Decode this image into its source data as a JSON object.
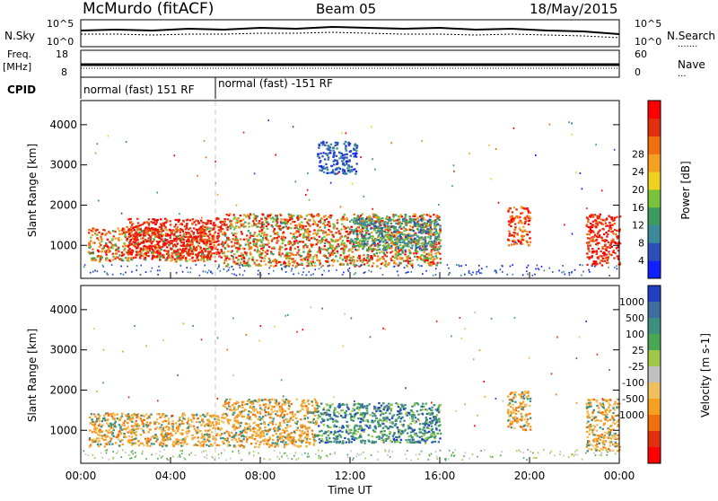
{
  "header": {
    "station": "McMurdo (fitACF)",
    "beam": "Beam 05",
    "date": "18/May/2015"
  },
  "top_panels": {
    "nsky_label": "N.Sky",
    "nsky_ticks": [
      "10^5",
      "10^0"
    ],
    "nsearch_label": "N.Search",
    "nsearch_ticks": [
      "10^5",
      "10^0"
    ],
    "freq_label": "Freq.",
    "freq_unit": "[MHz]",
    "freq_ticks": [
      "18",
      "8"
    ],
    "nave_label": "Nave",
    "nave_ticks": [
      "60",
      "0"
    ],
    "cpid_label": "CPID",
    "cpid_segments": [
      {
        "text": "normal (fast) 151 RF",
        "start_hour": 0,
        "end_hour": 6.0
      },
      {
        "text": "normal (fast) -151 RF",
        "start_hour": 6.0,
        "end_hour": 24
      }
    ]
  },
  "chart_data": [
    {
      "type": "heatmap",
      "name": "power",
      "ylabel": "Slant Range [km]",
      "yticks": [
        "1000",
        "2000",
        "3000",
        "4000"
      ],
      "ylim": [
        180,
        4600
      ],
      "xlim": [
        0,
        24
      ],
      "colorbar": {
        "label": "Power [dB]",
        "ticks": [
          "4",
          "8",
          "12",
          "16",
          "20",
          "24",
          "28"
        ],
        "colors": [
          "#1020ff",
          "#2a50b8",
          "#3a8a9a",
          "#3d9a60",
          "#78c23c",
          "#f0d020",
          "#f5a020",
          "#f07010",
          "#e03010",
          "#ff0000"
        ]
      },
      "echo_regions": [
        {
          "x": [
            0.3,
            6.0
          ],
          "y": [
            620,
            1450
          ],
          "color_hint": "mixed-high"
        },
        {
          "x": [
            2.0,
            6.3
          ],
          "y": [
            700,
            1700
          ],
          "color_hint": "red"
        },
        {
          "x": [
            6.3,
            16.0
          ],
          "y": [
            500,
            1800
          ],
          "color_hint": "red-green"
        },
        {
          "x": [
            12.0,
            16.0
          ],
          "y": [
            900,
            1700
          ],
          "color_hint": "blue-green"
        },
        {
          "x": [
            10.5,
            12.3
          ],
          "y": [
            2800,
            3600
          ],
          "color_hint": "blue"
        },
        {
          "x": [
            19.0,
            20.0
          ],
          "y": [
            1000,
            2000
          ],
          "color_hint": "orange"
        },
        {
          "x": [
            22.5,
            24.0
          ],
          "y": [
            500,
            1800
          ],
          "color_hint": "red"
        }
      ]
    },
    {
      "type": "heatmap",
      "name": "velocity",
      "ylabel": "Slant Range [km]",
      "yticks": [
        "1000",
        "2000",
        "3000",
        "4000"
      ],
      "ylim": [
        180,
        4600
      ],
      "xlim": [
        0,
        24
      ],
      "xlabel": "Time UT",
      "xticks": [
        "00:00",
        "04:00",
        "08:00",
        "12:00",
        "16:00",
        "20:00",
        "00:00"
      ],
      "colorbar": {
        "label": "Velocity [m s-1]",
        "ticks": [
          "1000",
          "500",
          "100",
          "25",
          "-25",
          "-100",
          "-500",
          "-1000"
        ],
        "colors": [
          "#2040c0",
          "#3c6ea0",
          "#3d9080",
          "#4aa852",
          "#9ec84a",
          "#c0c0c0",
          "#f0c060",
          "#f5a020",
          "#f07010",
          "#e03010",
          "#ff0000"
        ]
      },
      "echo_regions": [
        {
          "x": [
            0.3,
            6.3
          ],
          "y": [
            620,
            1450
          ],
          "color_hint": "orange"
        },
        {
          "x": [
            6.3,
            10.5
          ],
          "y": [
            600,
            1800
          ],
          "color_hint": "orange"
        },
        {
          "x": [
            10.5,
            16.0
          ],
          "y": [
            700,
            1700
          ],
          "color_hint": "green"
        },
        {
          "x": [
            19.0,
            20.0
          ],
          "y": [
            1000,
            2000
          ],
          "color_hint": "orange"
        },
        {
          "x": [
            22.5,
            24.0
          ],
          "y": [
            500,
            1800
          ],
          "color_hint": "orange"
        }
      ]
    }
  ]
}
